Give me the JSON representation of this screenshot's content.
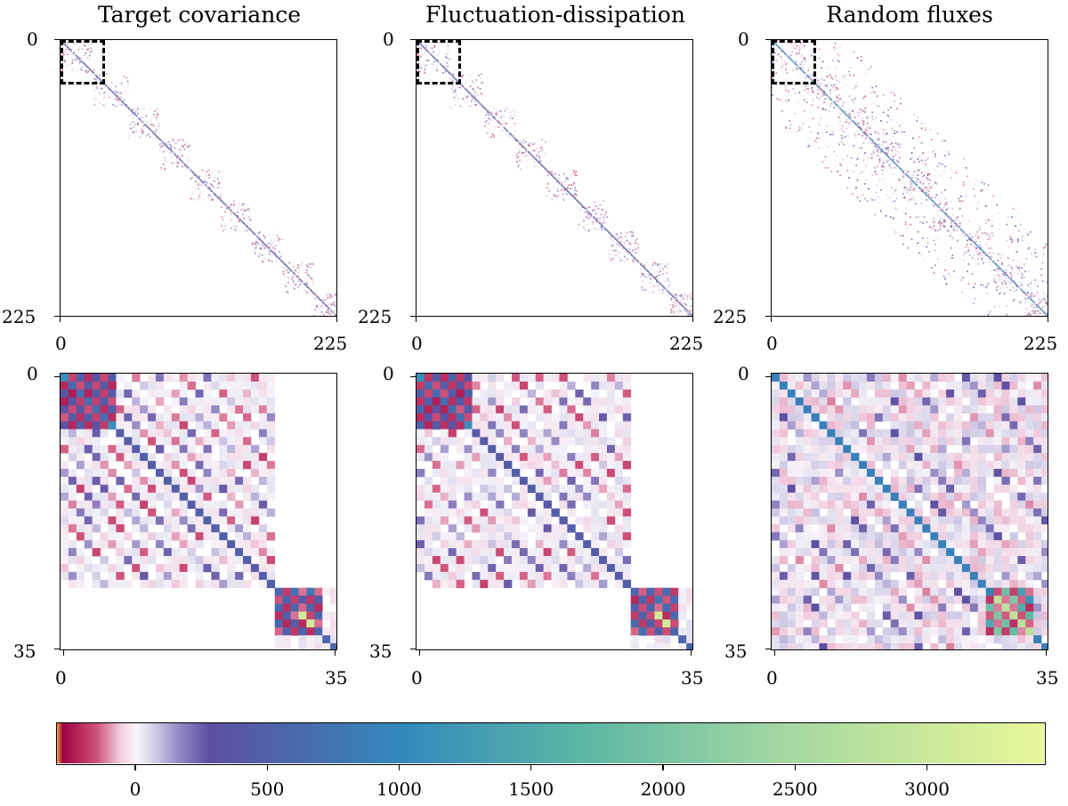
{
  "chart_data": [
    {
      "type": "heatmap",
      "panel": "full-target",
      "title": "Target covariance",
      "matrix_size": 225,
      "xticks": [
        "0",
        "225"
      ],
      "yticks": [
        "0",
        "225"
      ],
      "zoom_region": [
        0,
        35
      ],
      "vmin": -300,
      "vmax": 3450
    },
    {
      "type": "heatmap",
      "panel": "full-fd",
      "title": "Fluctuation-dissipation",
      "matrix_size": 225,
      "xticks": [
        "0",
        "225"
      ],
      "yticks": [
        "0",
        "225"
      ],
      "zoom_region": [
        0,
        35
      ],
      "vmin": -300,
      "vmax": 3450
    },
    {
      "type": "heatmap",
      "panel": "full-random",
      "title": "Random fluxes",
      "matrix_size": 225,
      "xticks": [
        "0",
        "225"
      ],
      "yticks": [
        "0",
        "225"
      ],
      "zoom_region": [
        0,
        35
      ],
      "vmin": -300,
      "vmax": 3450
    },
    {
      "type": "heatmap",
      "panel": "zoom-target",
      "title": "",
      "matrix_size": 35,
      "xticks": [
        "0",
        "35"
      ],
      "yticks": [
        "0",
        "35"
      ],
      "vmin": -300,
      "vmax": 3450
    },
    {
      "type": "heatmap",
      "panel": "zoom-fd",
      "title": "",
      "matrix_size": 35,
      "xticks": [
        "0",
        "35"
      ],
      "yticks": [
        "0",
        "35"
      ],
      "vmin": -300,
      "vmax": 3450
    },
    {
      "type": "heatmap",
      "panel": "zoom-random",
      "title": "",
      "matrix_size": 35,
      "xticks": [
        "0",
        "35"
      ],
      "yticks": [
        "0",
        "35"
      ],
      "vmin": -300,
      "vmax": 3450
    }
  ],
  "colorbar": {
    "orientation": "horizontal",
    "colormap": "Spectral",
    "range": [
      -300,
      3450
    ],
    "ticks": [
      {
        "value": 0,
        "label": "0"
      },
      {
        "value": 500,
        "label": "500"
      },
      {
        "value": 1000,
        "label": "1000"
      },
      {
        "value": 1500,
        "label": "1500"
      },
      {
        "value": 2000,
        "label": "2000"
      },
      {
        "value": 2500,
        "label": "2500"
      },
      {
        "value": 3000,
        "label": "3000"
      }
    ],
    "stops": [
      {
        "v": -300,
        "c": "#f39c3f"
      },
      {
        "v": -280,
        "c": "#9e0142"
      },
      {
        "v": -150,
        "c": "#d0537a"
      },
      {
        "v": -60,
        "c": "#f1cfe0"
      },
      {
        "v": 0,
        "c": "#f8f7fb"
      },
      {
        "v": 80,
        "c": "#ccc6e3"
      },
      {
        "v": 170,
        "c": "#9184c2"
      },
      {
        "v": 280,
        "c": "#5e4fa2"
      },
      {
        "v": 1000,
        "c": "#3288bd"
      },
      {
        "v": 1700,
        "c": "#5cb7a4"
      },
      {
        "v": 2400,
        "c": "#9fd5a3"
      },
      {
        "v": 3100,
        "c": "#d1ec9a"
      },
      {
        "v": 3450,
        "c": "#e8f69a"
      }
    ]
  }
}
